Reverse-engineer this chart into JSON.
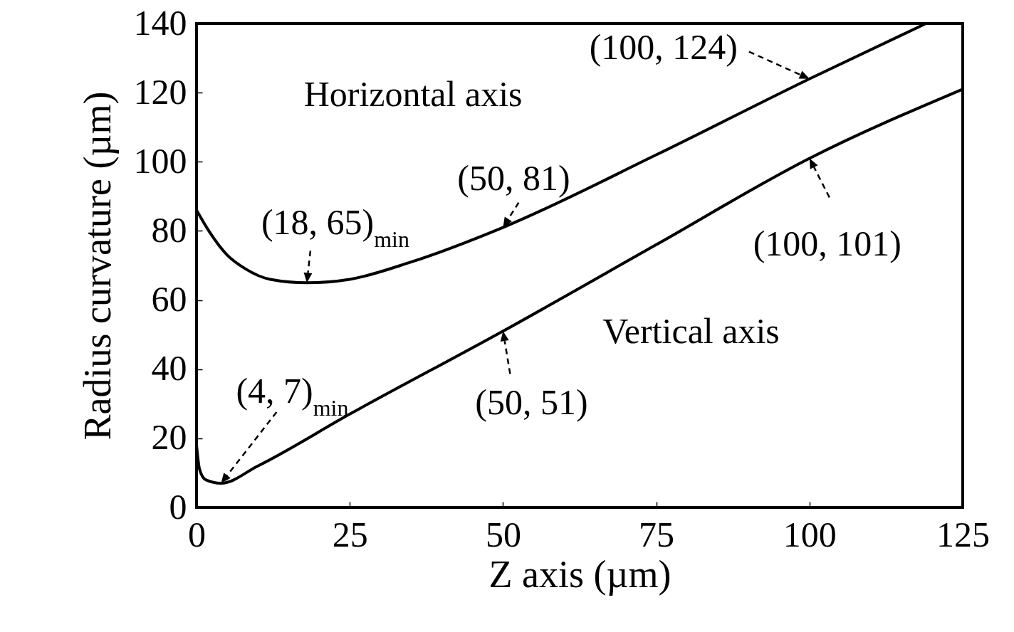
{
  "chart_data": {
    "type": "line",
    "xlabel": "Z axis (µm)",
    "ylabel": "Radius curvature (µm)",
    "xlim": [
      0,
      125
    ],
    "xticks": [
      0,
      25,
      50,
      75,
      100,
      125
    ],
    "ylim": [
      0,
      140
    ],
    "yticks": [
      0,
      20,
      40,
      60,
      80,
      100,
      120,
      140
    ],
    "grid": false,
    "marker": "none",
    "line_style": "solid",
    "series": [
      {
        "name": "Horizontal axis",
        "color": "#000000",
        "x": [
          0,
          2,
          5,
          8,
          12,
          18,
          25,
          35,
          50,
          75,
          100,
          119
        ],
        "values": [
          86,
          80,
          73,
          69,
          66,
          65,
          66,
          71,
          81,
          102,
          124,
          140
        ]
      },
      {
        "name": "Vertical axis",
        "color": "#000000",
        "x": [
          0,
          0.5,
          1.5,
          4,
          10,
          25,
          50,
          75,
          100,
          125
        ],
        "values": [
          18,
          11,
          8,
          7,
          12,
          27,
          51,
          76,
          101,
          121
        ]
      }
    ],
    "annotations": [
      {
        "text": "(18, 65)$_{min}$",
        "x": 18,
        "y": 65
      },
      {
        "text": "(50, 81)",
        "x": 50,
        "y": 81
      },
      {
        "text": "(100, 124)",
        "x": 100,
        "y": 124
      },
      {
        "text": "(4, 7)$_{min}$",
        "x": 4,
        "y": 7
      },
      {
        "text": "(50, 51)",
        "x": 50,
        "y": 51
      },
      {
        "text": "(100, 101)",
        "x": 100,
        "y": 101
      }
    ]
  }
}
